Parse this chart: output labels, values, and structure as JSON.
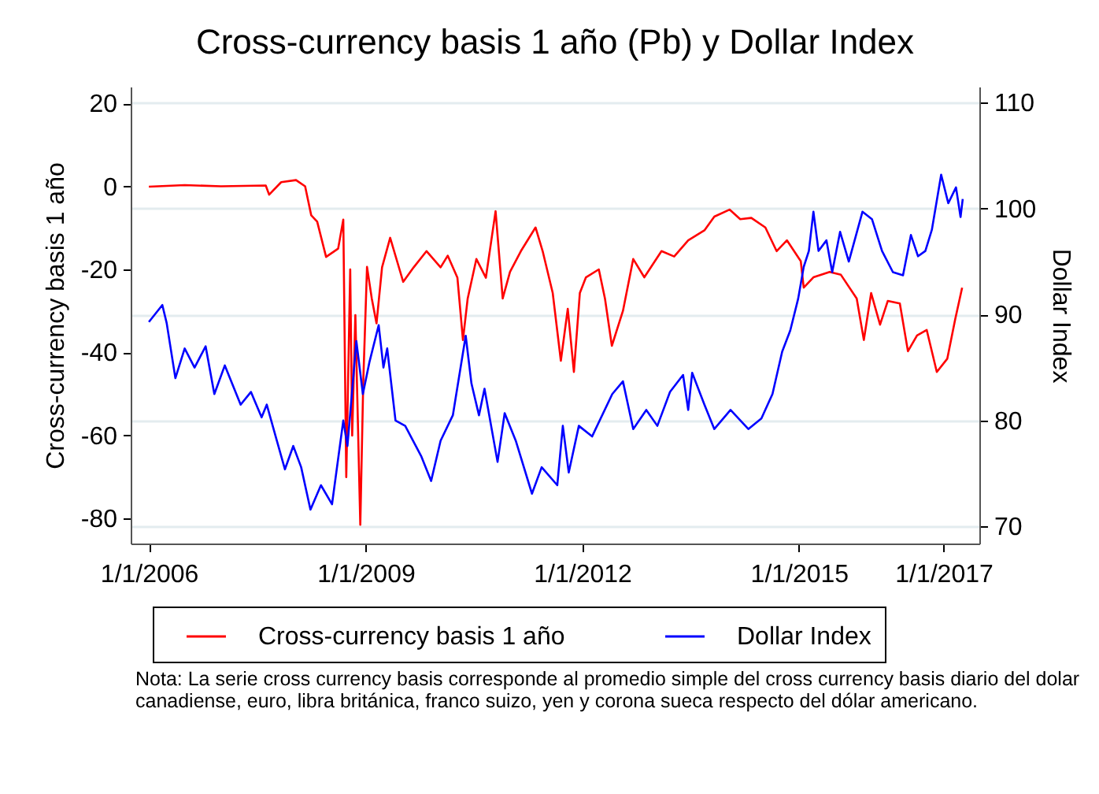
{
  "chart_data": {
    "type": "line",
    "title": "Cross-currency basis 1 año (Pb) y Dollar Index",
    "ylabel": "Cross-currency basis 1 año",
    "y2label": "Dollar Index",
    "x": [
      "2006-01-01",
      "2006-07-01",
      "2007-01-01",
      "2007-08-15",
      "2007-09-01",
      "2007-11-01",
      "2008-01-15",
      "2008-03-01",
      "2008-04-01",
      "2008-05-01",
      "2008-06-15",
      "2008-08-15",
      "2008-09-10",
      "2008-09-25",
      "2008-10-15",
      "2008-10-25",
      "2008-11-10",
      "2008-12-05",
      "2008-12-20",
      "2009-01-08",
      "2009-02-01",
      "2009-02-25",
      "2009-03-25",
      "2009-05-05",
      "2009-07-10",
      "2009-09-01",
      "2009-11-05",
      "2010-01-15",
      "2010-02-20",
      "2010-04-10",
      "2010-05-08",
      "2010-06-01",
      "2010-07-15",
      "2010-09-01",
      "2010-10-20",
      "2010-11-25",
      "2011-01-01",
      "2011-02-25",
      "2011-05-10",
      "2011-06-15",
      "2011-08-05",
      "2011-09-15",
      "2011-10-20",
      "2011-11-20",
      "2011-12-20",
      "2012-01-20",
      "2012-03-25",
      "2012-04-25",
      "2012-05-30",
      "2012-07-25",
      "2012-09-15",
      "2012-11-10",
      "2013-02-05",
      "2013-04-10",
      "2013-06-20",
      "2013-09-10",
      "2013-10-30",
      "2014-01-15",
      "2014-03-10",
      "2014-05-05",
      "2014-07-15",
      "2014-09-10",
      "2014-11-01",
      "2015-01-10",
      "2015-01-25",
      "2015-03-15",
      "2015-06-05",
      "2015-08-01",
      "2015-10-20",
      "2015-11-25",
      "2016-01-01",
      "2016-02-15",
      "2016-03-25",
      "2016-05-25",
      "2016-07-05",
      "2016-08-20",
      "2016-10-08",
      "2016-11-28",
      "2017-01-20",
      "2017-03-01",
      "2017-04-05"
    ],
    "series": [
      {
        "name": "Cross-currency basis 1 año",
        "color": "#ff0000",
        "values": [
          -0.1,
          0.3,
          0.0,
          0.2,
          -2,
          1,
          1.5,
          0,
          -7,
          -8.5,
          -17,
          -15,
          -8,
          -70,
          -20,
          -60,
          -31,
          -81.5,
          -47,
          -19.4,
          -27,
          -33,
          -19.5,
          -12.4,
          -23,
          -19.5,
          -15.6,
          -19.5,
          -16.7,
          -22,
          -37,
          -27,
          -17.5,
          -22,
          -6,
          -27,
          -20.6,
          -15.6,
          -9.9,
          -15.6,
          -25.7,
          -42,
          -29.5,
          -44.7,
          -25.7,
          -21.9,
          -20,
          -27,
          -38.4,
          -30,
          -17.5,
          -21.9,
          -15.6,
          -16.9,
          -13,
          -10.6,
          -7.3,
          -5.6,
          -7.9,
          -7.6,
          -9.9,
          -15.6,
          -13,
          -18,
          -24.4,
          -21.9,
          -20.6,
          -21.3,
          -27,
          -37,
          -25.7,
          -33.3,
          -27.6,
          -28.2,
          -39.7,
          -35.9,
          -34.6,
          -44.7,
          -41.5,
          -32,
          -24.4
        ]
      },
      {
        "name": "Dollar Index",
        "color": "#0000ff",
        "axis": "y2",
        "x": [
          "2006-01-01",
          "2006-03-10",
          "2006-04-01",
          "2006-05-15",
          "2006-07-01",
          "2006-08-20",
          "2006-10-15",
          "2006-11-28",
          "2007-01-20",
          "2007-04-10",
          "2007-06-01",
          "2007-07-25",
          "2007-08-20",
          "2007-10-10",
          "2007-11-20",
          "2008-01-01",
          "2008-02-10",
          "2008-03-28",
          "2008-05-20",
          "2008-07-15",
          "2008-09-10",
          "2008-10-01",
          "2008-11-15",
          "2008-12-18",
          "2009-01-20",
          "2009-03-08",
          "2009-04-01",
          "2009-04-20",
          "2009-06-01",
          "2009-07-20",
          "2009-10-10",
          "2009-11-28",
          "2010-01-15",
          "2010-03-18",
          "2010-05-22",
          "2010-06-20",
          "2010-07-28",
          "2010-08-25",
          "2010-10-30",
          "2010-12-05",
          "2011-01-30",
          "2011-04-22",
          "2011-06-10",
          "2011-08-28",
          "2011-09-25",
          "2011-10-25",
          "2011-12-15",
          "2012-02-20",
          "2012-06-01",
          "2012-07-25",
          "2012-09-15",
          "2012-11-20",
          "2013-01-15",
          "2013-03-20",
          "2013-05-25",
          "2013-06-20",
          "2013-07-10",
          "2013-09-10",
          "2013-10-30",
          "2014-01-20",
          "2014-04-20",
          "2014-06-25",
          "2014-08-20",
          "2014-10-08",
          "2014-11-18",
          "2014-12-28",
          "2015-01-25",
          "2015-02-20",
          "2015-03-15",
          "2015-04-10",
          "2015-05-20",
          "2015-06-18",
          "2015-07-28",
          "2015-09-10",
          "2015-11-18",
          "2016-01-05",
          "2016-02-25",
          "2016-04-20",
          "2016-06-10",
          "2016-07-20",
          "2016-08-25",
          "2016-10-01",
          "2016-11-03",
          "2016-12-20",
          "2017-01-25",
          "2017-03-05",
          "2017-03-28",
          "2017-04-08"
        ],
        "values": [
          89.3,
          90.9,
          89.2,
          84.0,
          86.8,
          85.0,
          87.0,
          82.5,
          85.2,
          81.5,
          82.7,
          80.3,
          81.5,
          78.1,
          75.4,
          77.6,
          75.6,
          71.6,
          73.9,
          72.1,
          80.0,
          77.6,
          87.5,
          82.5,
          85.5,
          89.0,
          85.0,
          86.8,
          80.0,
          79.5,
          76.6,
          74.3,
          78.1,
          80.5,
          88.0,
          83.5,
          80.5,
          83.0,
          76.1,
          80.7,
          78.1,
          73.1,
          75.6,
          73.9,
          79.5,
          75.1,
          79.5,
          78.5,
          82.5,
          83.7,
          79.2,
          81.0,
          79.5,
          82.7,
          84.3,
          81.0,
          84.5,
          81.5,
          79.2,
          81.0,
          79.2,
          80.2,
          82.5,
          86.5,
          88.5,
          91.5,
          94.5,
          96.0,
          99.7,
          96.0,
          97.0,
          94.0,
          97.8,
          95.0,
          99.7,
          99.0,
          96.0,
          94.0,
          93.7,
          97.5,
          95.5,
          96.0,
          98.0,
          103.2,
          100.5,
          102.0,
          99.2,
          100.9
        ]
      }
    ],
    "xlim": [
      "2005-10-01",
      "2017-07-01"
    ],
    "xticks": [
      {
        "value": "2006-01-01",
        "label": "1/1/2006"
      },
      {
        "value": "2009-01-01",
        "label": "1/1/2009"
      },
      {
        "value": "2012-01-01",
        "label": "1/1/2012"
      },
      {
        "value": "2015-01-01",
        "label": "1/1/2015"
      },
      {
        "value": "2017-01-01",
        "label": "1/1/2017"
      }
    ],
    "ylim": [
      -86,
      24
    ],
    "yticks": [
      -80,
      -60,
      -40,
      -20,
      0,
      20
    ],
    "y2lim": [
      68.4,
      111.5
    ],
    "y2ticks": [
      70,
      80,
      90,
      100,
      110
    ],
    "grid": "y",
    "legend": "bottom",
    "annotations": [
      "Nota: La serie cross currency basis corresponde al promedio simple del cross currency basis diario del dolar canadiense, euro, libra británica, franco suizo, yen y corona sueca respecto del dólar americano."
    ]
  }
}
